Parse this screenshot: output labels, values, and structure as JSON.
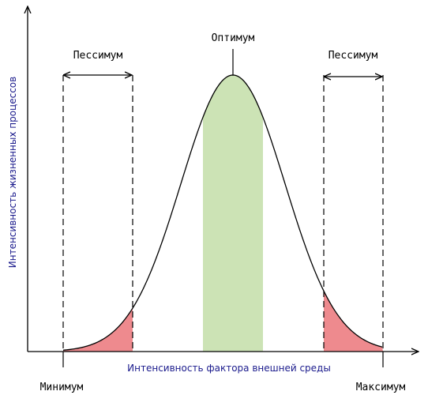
{
  "labels": {
    "optimum": "Оптимум",
    "pessimum_left": "Пессимум",
    "pessimum_right": "Пессимум",
    "minimum": "Минимум",
    "maximum": "Максимум",
    "x_axis": "Интенсивность фактора внешней среды",
    "y_axis": "Интенсивность жизненных процессов"
  }
}
